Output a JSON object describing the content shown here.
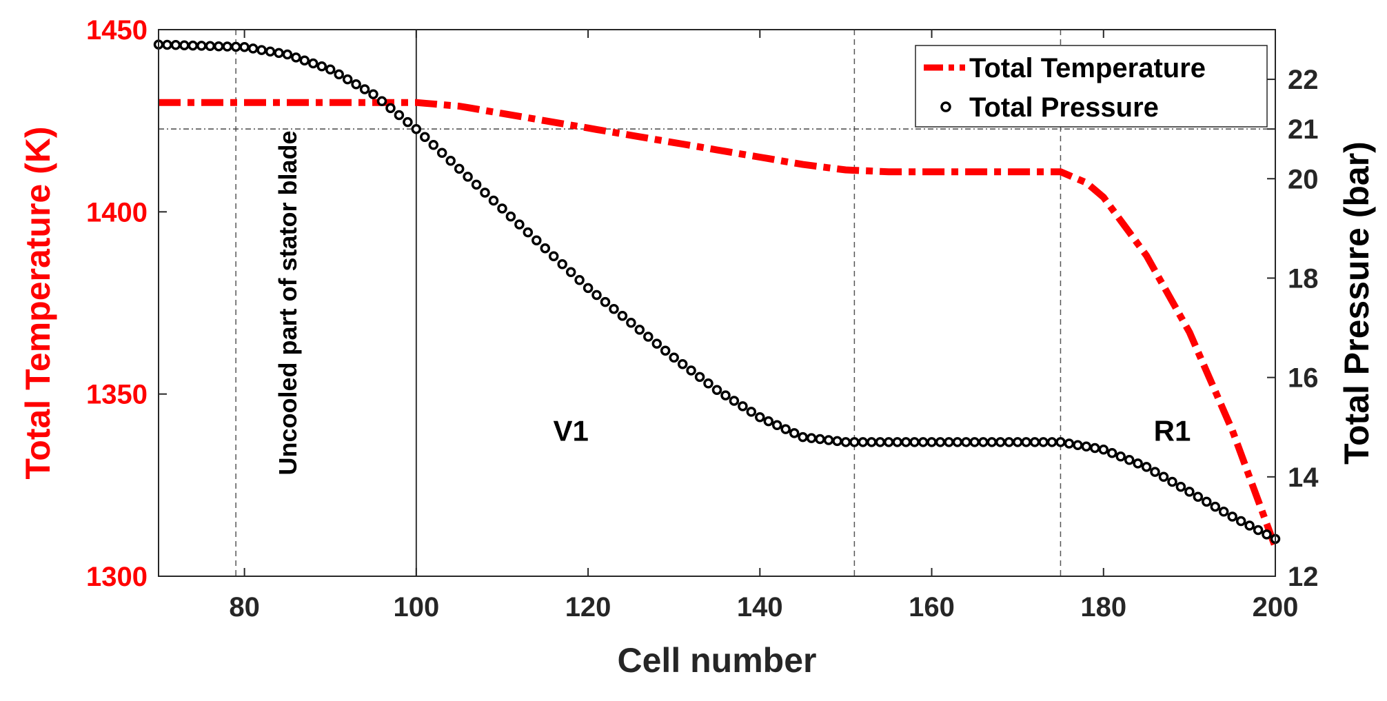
{
  "chart_data": {
    "type": "line",
    "title": "",
    "xlabel": "Cell number",
    "ylabel_left": "Total Temperature (K)",
    "ylabel_right": "Total Pressure (bar)",
    "xlim": [
      70,
      200
    ],
    "ylim_left": [
      1300,
      1450
    ],
    "ylim_right": [
      12,
      23
    ],
    "x_ticks": [
      80,
      100,
      120,
      140,
      160,
      180,
      200
    ],
    "y_left_ticks": [
      1300,
      1350,
      1400,
      1450
    ],
    "y_right_ticks": [
      12,
      14,
      16,
      18,
      20,
      21,
      22
    ],
    "grid": false,
    "legend_position": "top-right",
    "colors": {
      "temperature": "#ff0000",
      "pressure": "#000000",
      "left_axis": "#ff0000",
      "right_axis": "#262626"
    },
    "series": [
      {
        "name": "Total Temperature",
        "axis": "left",
        "style": "dash-dot",
        "x": [
          70,
          80,
          90,
          95,
          100,
          105,
          110,
          115,
          120,
          125,
          130,
          135,
          140,
          145,
          150,
          155,
          160,
          165,
          170,
          175,
          178,
          180,
          185,
          190,
          195,
          200
        ],
        "values": [
          1430,
          1430,
          1430,
          1430,
          1430,
          1429,
          1427,
          1425,
          1423,
          1421,
          1419,
          1417,
          1415,
          1413,
          1411.5,
          1411,
          1411,
          1411,
          1411,
          1411,
          1408,
          1404,
          1388,
          1367,
          1340,
          1308
        ]
      },
      {
        "name": "Total Pressure",
        "axis": "right",
        "style": "circle-markers",
        "x": [
          70,
          80,
          85,
          90,
          95,
          100,
          105,
          110,
          115,
          120,
          125,
          130,
          135,
          140,
          145,
          150,
          155,
          160,
          165,
          170,
          175,
          180,
          185,
          190,
          195,
          200
        ],
        "values": [
          22.7,
          22.65,
          22.5,
          22.2,
          21.7,
          21.0,
          20.2,
          19.4,
          18.6,
          17.8,
          17.1,
          16.4,
          15.75,
          15.2,
          14.8,
          14.7,
          14.7,
          14.7,
          14.7,
          14.7,
          14.7,
          14.55,
          14.2,
          13.7,
          13.2,
          12.75
        ]
      }
    ],
    "vertical_lines": [
      {
        "x": 79,
        "style": "dashed"
      },
      {
        "x": 100,
        "style": "solid"
      },
      {
        "x": 151,
        "style": "dashed"
      },
      {
        "x": 175,
        "style": "dashed"
      }
    ],
    "horizontal_lines": [
      {
        "axis": "right",
        "y": 21,
        "style": "dash-dot"
      }
    ],
    "annotations": [
      {
        "text": "Uncooled part of stator blade",
        "x": 87,
        "y_left": 1375,
        "rotation": "vertical"
      },
      {
        "text": "V1",
        "x": 118,
        "y_left": 1340
      },
      {
        "text": "R1",
        "x": 188,
        "y_left": 1340
      }
    ]
  }
}
